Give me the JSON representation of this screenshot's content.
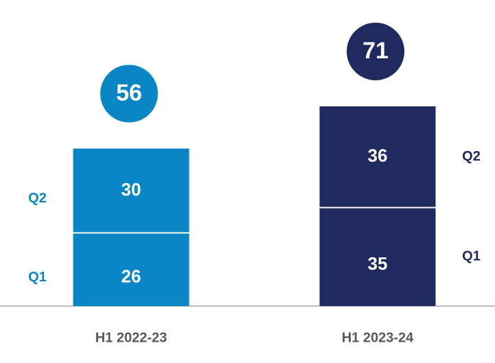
{
  "chart_data": {
    "type": "stacked-bar",
    "categories": [
      "H1 2022-23",
      "H1 2023-24"
    ],
    "series": [
      {
        "name": "Q1",
        "values": [
          26,
          35
        ]
      },
      {
        "name": "Q2",
        "values": [
          30,
          36
        ]
      }
    ],
    "totals": [
      56,
      71
    ],
    "colors": [
      "#0a86c4",
      "#1f2a60"
    ]
  }
}
